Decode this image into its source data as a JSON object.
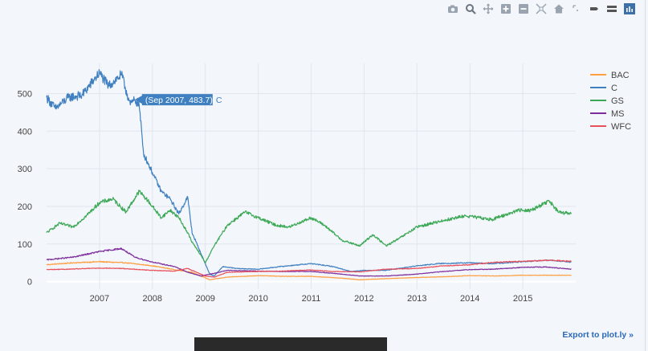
{
  "toolbar": {
    "icons": [
      "camera-icon",
      "zoom-icon",
      "pan-icon",
      "zoom-in-icon",
      "zoom-out-icon",
      "autoscale-icon",
      "home-icon",
      "spike-lines-icon",
      "hover-closest-icon",
      "hover-compare-icon",
      "plotly-logo-icon"
    ]
  },
  "export_label": "Export to plot.ly »",
  "chart_data": {
    "type": "line",
    "x_range": [
      "2006-01-01",
      "2016-01-01"
    ],
    "y_range": [
      -20,
      580
    ],
    "x_ticks": [
      "2007",
      "2008",
      "2009",
      "2010",
      "2011",
      "2012",
      "2013",
      "2014",
      "2015"
    ],
    "y_ticks": [
      0,
      100,
      200,
      300,
      400,
      500
    ],
    "grid": true,
    "legend_position": "top-right",
    "series": [
      {
        "name": "BAC",
        "color": "#ff9f40",
        "points": [
          [
            "2006-01",
            45
          ],
          [
            "2006-07",
            50
          ],
          [
            "2007-01",
            53
          ],
          [
            "2007-07",
            50
          ],
          [
            "2008-01",
            42
          ],
          [
            "2008-07",
            30
          ],
          [
            "2008-10",
            25
          ],
          [
            "2009-02",
            5
          ],
          [
            "2009-06",
            12
          ],
          [
            "2010-01",
            16
          ],
          [
            "2010-07",
            14
          ],
          [
            "2011-01",
            14
          ],
          [
            "2011-07",
            10
          ],
          [
            "2011-12",
            5
          ],
          [
            "2012-06",
            8
          ],
          [
            "2013-01",
            11
          ],
          [
            "2013-07",
            13
          ],
          [
            "2014-01",
            16
          ],
          [
            "2014-07",
            15
          ],
          [
            "2015-01",
            17
          ],
          [
            "2015-07",
            17
          ],
          [
            "2015-12",
            17
          ]
        ]
      },
      {
        "name": "C",
        "color": "#3f80c0",
        "points": [
          [
            "2006-01",
            490
          ],
          [
            "2006-03",
            460
          ],
          [
            "2006-06",
            490
          ],
          [
            "2006-09",
            495
          ],
          [
            "2006-12",
            540
          ],
          [
            "2007-01",
            555
          ],
          [
            "2007-03",
            520
          ],
          [
            "2007-06",
            550
          ],
          [
            "2007-08",
            470
          ],
          [
            "2007-09",
            483.7
          ],
          [
            "2007-10",
            470
          ],
          [
            "2007-11",
            340
          ],
          [
            "2008-01",
            290
          ],
          [
            "2008-03",
            240
          ],
          [
            "2008-05",
            220
          ],
          [
            "2008-07",
            180
          ],
          [
            "2008-09",
            225
          ],
          [
            "2008-10",
            130
          ],
          [
            "2008-12",
            75
          ],
          [
            "2009-02",
            20
          ],
          [
            "2009-03",
            15
          ],
          [
            "2009-05",
            40
          ],
          [
            "2009-08",
            35
          ],
          [
            "2010-01",
            33
          ],
          [
            "2010-06",
            40
          ],
          [
            "2011-01",
            48
          ],
          [
            "2011-06",
            40
          ],
          [
            "2011-10",
            27
          ],
          [
            "2012-01",
            30
          ],
          [
            "2012-06",
            30
          ],
          [
            "2013-01",
            42
          ],
          [
            "2013-06",
            48
          ],
          [
            "2014-01",
            50
          ],
          [
            "2014-06",
            48
          ],
          [
            "2015-01",
            53
          ],
          [
            "2015-07",
            57
          ],
          [
            "2015-12",
            52
          ]
        ]
      },
      {
        "name": "GS",
        "color": "#3aa854",
        "points": [
          [
            "2006-01",
            130
          ],
          [
            "2006-04",
            155
          ],
          [
            "2006-07",
            145
          ],
          [
            "2006-10",
            175
          ],
          [
            "2007-01",
            210
          ],
          [
            "2007-04",
            220
          ],
          [
            "2007-07",
            185
          ],
          [
            "2007-10",
            240
          ],
          [
            "2007-12",
            215
          ],
          [
            "2008-03",
            170
          ],
          [
            "2008-05",
            190
          ],
          [
            "2008-07",
            170
          ],
          [
            "2008-09",
            130
          ],
          [
            "2008-10",
            105
          ],
          [
            "2008-12",
            70
          ],
          [
            "2009-01",
            50
          ],
          [
            "2009-03",
            95
          ],
          [
            "2009-06",
            150
          ],
          [
            "2009-10",
            185
          ],
          [
            "2010-01",
            170
          ],
          [
            "2010-05",
            150
          ],
          [
            "2010-08",
            145
          ],
          [
            "2011-01",
            170
          ],
          [
            "2011-04",
            150
          ],
          [
            "2011-08",
            110
          ],
          [
            "2011-12",
            95
          ],
          [
            "2012-03",
            125
          ],
          [
            "2012-06",
            95
          ],
          [
            "2012-09",
            115
          ],
          [
            "2013-01",
            145
          ],
          [
            "2013-06",
            160
          ],
          [
            "2013-12",
            175
          ],
          [
            "2014-06",
            165
          ],
          [
            "2014-12",
            190
          ],
          [
            "2015-03",
            190
          ],
          [
            "2015-07",
            215
          ],
          [
            "2015-09",
            185
          ],
          [
            "2015-12",
            180
          ]
        ]
      },
      {
        "name": "MS",
        "color": "#7d2d9c",
        "points": [
          [
            "2006-01",
            58
          ],
          [
            "2006-07",
            65
          ],
          [
            "2007-01",
            80
          ],
          [
            "2007-06",
            88
          ],
          [
            "2007-09",
            65
          ],
          [
            "2008-01",
            52
          ],
          [
            "2008-06",
            40
          ],
          [
            "2008-09",
            25
          ],
          [
            "2008-12",
            15
          ],
          [
            "2009-03",
            22
          ],
          [
            "2009-06",
            30
          ],
          [
            "2010-01",
            28
          ],
          [
            "2010-06",
            27
          ],
          [
            "2011-01",
            27
          ],
          [
            "2011-06",
            22
          ],
          [
            "2011-12",
            15
          ],
          [
            "2012-06",
            15
          ],
          [
            "2013-01",
            20
          ],
          [
            "2013-06",
            26
          ],
          [
            "2014-01",
            32
          ],
          [
            "2014-06",
            33
          ],
          [
            "2015-01",
            38
          ],
          [
            "2015-06",
            39
          ],
          [
            "2015-12",
            33
          ]
        ]
      },
      {
        "name": "WFC",
        "color": "#e8505b",
        "points": [
          [
            "2006-01",
            32
          ],
          [
            "2006-06",
            33
          ],
          [
            "2007-01",
            36
          ],
          [
            "2007-06",
            35
          ],
          [
            "2008-01",
            30
          ],
          [
            "2008-06",
            28
          ],
          [
            "2008-09",
            35
          ],
          [
            "2009-01",
            15
          ],
          [
            "2009-03",
            12
          ],
          [
            "2009-06",
            25
          ],
          [
            "2010-01",
            27
          ],
          [
            "2010-06",
            28
          ],
          [
            "2011-01",
            31
          ],
          [
            "2011-06",
            27
          ],
          [
            "2011-12",
            26
          ],
          [
            "2012-06",
            33
          ],
          [
            "2013-01",
            35
          ],
          [
            "2013-06",
            41
          ],
          [
            "2014-01",
            45
          ],
          [
            "2014-06",
            51
          ],
          [
            "2015-01",
            54
          ],
          [
            "2015-07",
            57
          ],
          [
            "2015-12",
            54
          ]
        ]
      }
    ],
    "hover": {
      "x": "2007-09",
      "y": 483.7,
      "text": "(Sep 2007, 483.7)",
      "series": "C"
    }
  }
}
